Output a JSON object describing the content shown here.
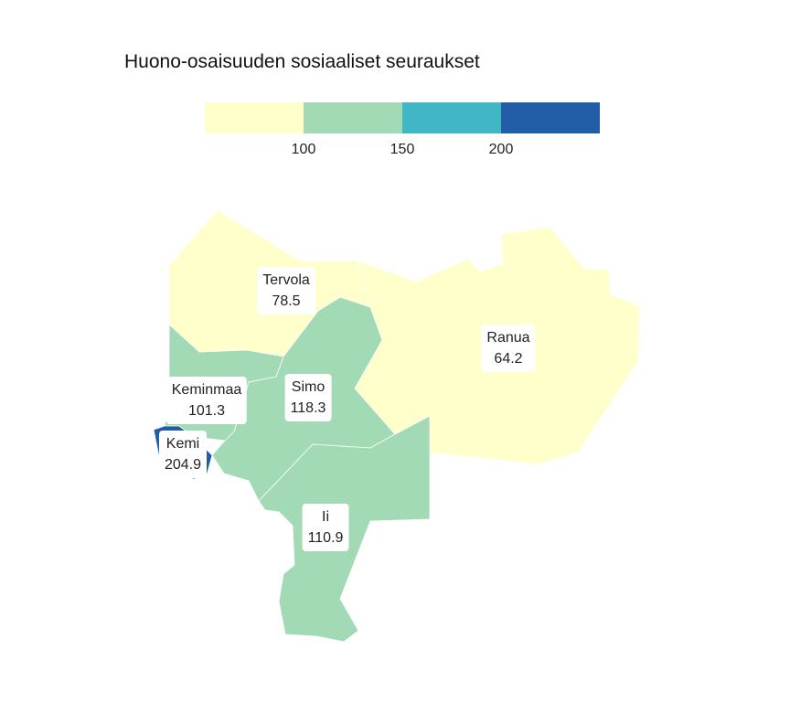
{
  "title": "Huono-osaisuuden sosiaaliset seuraukset",
  "legend": {
    "bins": [
      {
        "from": null,
        "to": 100,
        "color": "#ffffcc"
      },
      {
        "from": 100,
        "to": 150,
        "color": "#a1dab4"
      },
      {
        "from": 150,
        "to": 200,
        "color": "#41b6c4"
      },
      {
        "from": 200,
        "to": null,
        "color": "#225ea8"
      }
    ],
    "ticks": [
      "100",
      "150",
      "200"
    ]
  },
  "regions": [
    {
      "name": "Tervola",
      "value": "78.5",
      "color": "#ffffcc"
    },
    {
      "name": "Ranua",
      "value": "64.2",
      "color": "#ffffcc"
    },
    {
      "name": "Keminmaa",
      "value": "101.3",
      "color": "#a1dab4"
    },
    {
      "name": "Simo",
      "value": "118.3",
      "color": "#a1dab4"
    },
    {
      "name": "Kemi",
      "value": "204.9",
      "color": "#225ea8"
    },
    {
      "name": "Ii",
      "value": "110.9",
      "color": "#a1dab4"
    }
  ]
}
